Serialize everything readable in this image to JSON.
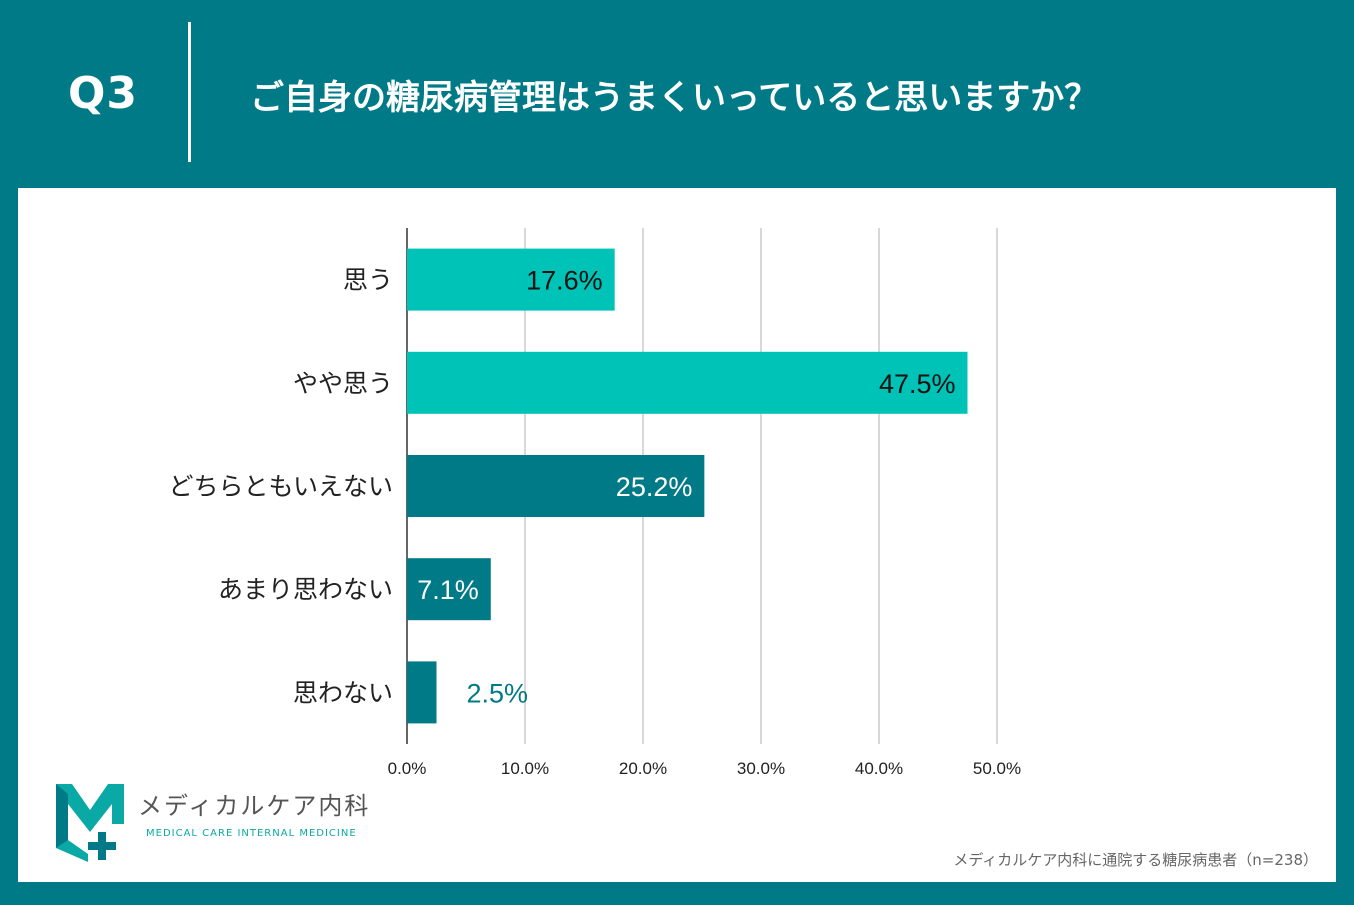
{
  "header": {
    "q_num": "Q3",
    "question": "ご自身の糖尿病管理はうまくいっていると思いますか？"
  },
  "colors": {
    "background": "#017a87",
    "positive": "#00c3b8",
    "negative": "#017a87",
    "panel": "#ffffff"
  },
  "chart_data": {
    "type": "bar",
    "orientation": "horizontal",
    "categories": [
      "思う",
      "やや思う",
      "どちらともいえない",
      "あまり思わない",
      "思わない"
    ],
    "values": [
      17.6,
      47.5,
      25.2,
      7.1,
      2.5
    ],
    "value_labels": [
      "17.6%",
      "47.5%",
      "25.2%",
      "7.1%",
      "2.5%"
    ],
    "bar_colors": [
      "#00c3b8",
      "#00c3b8",
      "#017a87",
      "#017a87",
      "#017a87"
    ],
    "xlim": [
      0,
      50
    ],
    "xticks": [
      0,
      10,
      20,
      30,
      40,
      50
    ],
    "xtick_labels": [
      "0.0%",
      "10.0%",
      "20.0%",
      "30.0%",
      "40.0%",
      "50.0%"
    ],
    "grid": true
  },
  "logo": {
    "name": "メディカルケア内科",
    "tagline": "MEDICAL CARE INTERNAL MEDICINE"
  },
  "footnote": "メディカルケア内科に通院する糖尿病患者（n=238）"
}
